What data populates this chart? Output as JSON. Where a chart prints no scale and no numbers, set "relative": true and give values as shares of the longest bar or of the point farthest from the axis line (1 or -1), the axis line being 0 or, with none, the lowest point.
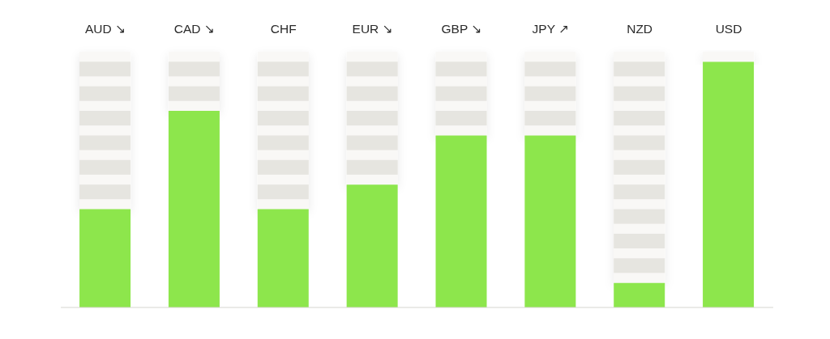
{
  "chart_data": {
    "type": "bar",
    "relative": true,
    "categories": [
      "AUD ↘",
      "CAD ↘",
      "CHF",
      "EUR ↘",
      "GBP ↘",
      "JPY ↗",
      "NZD",
      "USD"
    ],
    "values": [
      0.4,
      0.8,
      0.4,
      0.5,
      0.7,
      0.7,
      0.1,
      1
    ],
    "color": "#8de64c"
  }
}
